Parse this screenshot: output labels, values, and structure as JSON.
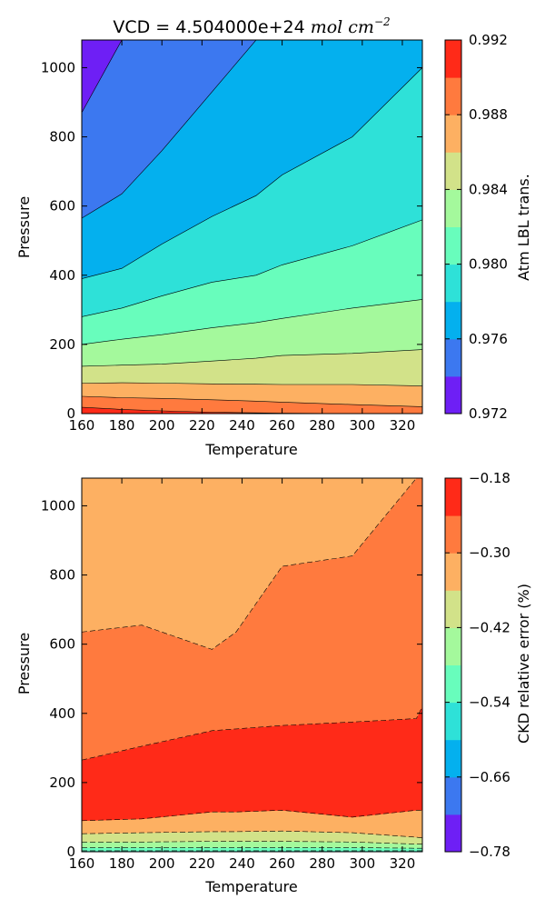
{
  "chart_data": [
    {
      "type": "contour",
      "title": "VCD = 4.504000e+24",
      "title_units": "mol cm",
      "title_exponent": "−2",
      "xlabel": "Temperature",
      "ylabel": "Pressure",
      "xlim": [
        160,
        330
      ],
      "ylim": [
        0,
        1080
      ],
      "xticks": [
        "160",
        "180",
        "200",
        "220",
        "240",
        "260",
        "280",
        "300",
        "320"
      ],
      "yticks": [
        "0",
        "200",
        "400",
        "600",
        "800",
        "1000"
      ],
      "colorbar_label": "Atm LBL trans.",
      "colorbar_ticks": [
        "0.972",
        "0.976",
        "0.980",
        "0.984",
        "0.988",
        "0.992"
      ],
      "level_colors": [
        "#6e1ff5",
        "#3c78f0",
        "#04b0ee",
        "#2ee1d8",
        "#68fdbc",
        "#a4f99c",
        "#d2e289",
        "#fdb062",
        "#ff7a3e",
        "#ff2a18"
      ],
      "x": [
        160,
        180,
        200,
        225,
        247,
        260,
        295,
        330
      ],
      "level_boundaries": [
        [
          0,
          0,
          0,
          0,
          0,
          0,
          0,
          0
        ],
        [
          18,
          12,
          8,
          4,
          2,
          1,
          0,
          0
        ],
        [
          50,
          46,
          44,
          40,
          36,
          33,
          26,
          20
        ],
        [
          88,
          89,
          88,
          86,
          85,
          84,
          84,
          80
        ],
        [
          137,
          140,
          143,
          152,
          160,
          168,
          174,
          185
        ],
        [
          200,
          215,
          228,
          248,
          263,
          275,
          305,
          330
        ],
        [
          280,
          305,
          340,
          380,
          400,
          430,
          485,
          560
        ],
        [
          390,
          420,
          490,
          570,
          630,
          690,
          800,
          1000
        ],
        [
          565,
          635,
          760,
          930,
          1080,
          1080,
          1080,
          1080
        ],
        [
          870,
          1080,
          1080,
          1080,
          1080,
          1080,
          1080,
          1080
        ]
      ]
    },
    {
      "type": "contour",
      "xlabel": "Temperature",
      "ylabel": "Pressure",
      "xlim": [
        160,
        330
      ],
      "ylim": [
        0,
        1080
      ],
      "xticks": [
        "160",
        "180",
        "200",
        "220",
        "240",
        "260",
        "280",
        "300",
        "320"
      ],
      "yticks": [
        "0",
        "200",
        "400",
        "600",
        "800",
        "1000"
      ],
      "colorbar_label": "CKD relative error (%)",
      "colorbar_ticks": [
        "−0.78",
        "−0.66",
        "−0.54",
        "−0.42",
        "−0.30",
        "−0.18"
      ],
      "level_colors": [
        "#6e1ff5",
        "#3c78f0",
        "#04b0ee",
        "#2ee1d8",
        "#68fdbc",
        "#a4f99c",
        "#d2e289",
        "#fdb062",
        "#ff7a3e",
        "#ff2a18"
      ],
      "x": [
        160,
        190,
        225,
        237,
        260,
        295,
        327,
        330
      ],
      "layers": [
        {
          "color": "#2ee1d8",
          "top": [
            3,
            3,
            3,
            3,
            3,
            3,
            3,
            3
          ]
        },
        {
          "color": "#68fdbc",
          "top": [
            12,
            12,
            12,
            12,
            12,
            12,
            10,
            10
          ]
        },
        {
          "color": "#a4f99c",
          "top": [
            28,
            28,
            30,
            30,
            30,
            28,
            22,
            22
          ]
        },
        {
          "color": "#d2e289",
          "top": [
            52,
            55,
            58,
            58,
            60,
            55,
            42,
            40
          ]
        },
        {
          "color": "#fdb062",
          "top": [
            90,
            95,
            115,
            115,
            120,
            100,
            120,
            120
          ]
        },
        {
          "color": "#ff2a18",
          "top": [
            265,
            305,
            350,
            355,
            365,
            375,
            385,
            420
          ]
        },
        {
          "color": "#ff7a3e",
          "top": [
            635,
            655,
            585,
            635,
            825,
            855,
            1080,
            1080
          ]
        },
        {
          "color": "#fdb062",
          "top": [
            1080,
            1080,
            1080,
            1080,
            1080,
            1080,
            1080,
            1080
          ]
        }
      ]
    }
  ]
}
